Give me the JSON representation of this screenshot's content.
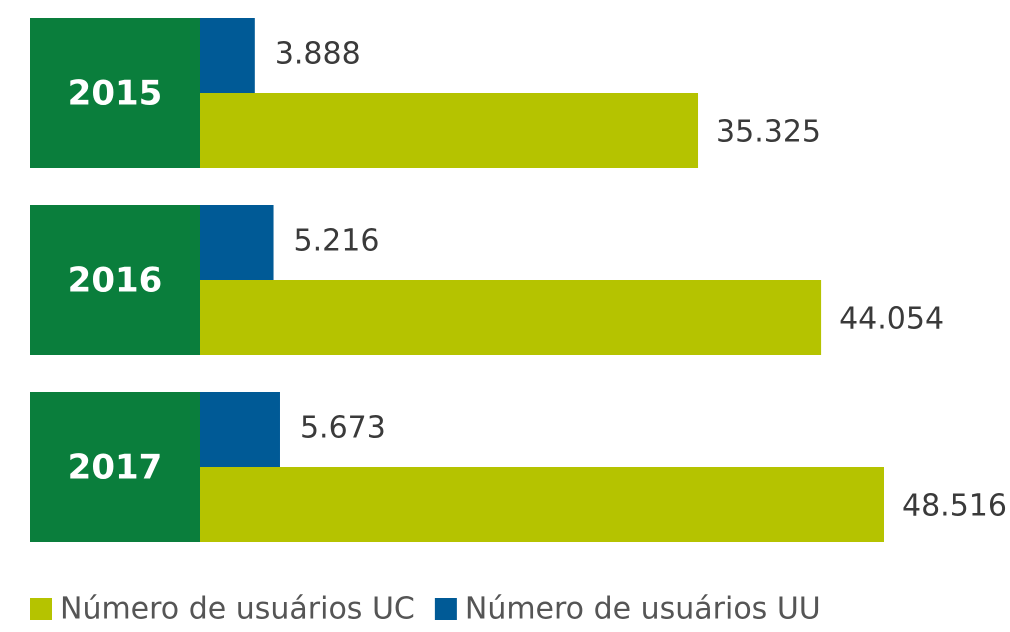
{
  "chart_data": {
    "type": "bar",
    "orientation": "horizontal",
    "categories": [
      "2015",
      "2016",
      "2017"
    ],
    "category_color": "#0a7e3c",
    "series": [
      {
        "name": "Número de usuários UC",
        "color": "#b5c300",
        "values": [
          35325,
          44054,
          48516
        ],
        "value_labels": [
          "35.325",
          "44.054",
          "48.516"
        ]
      },
      {
        "name": "Número de usuários UU",
        "color": "#005a96",
        "values": [
          3888,
          5216,
          5673
        ],
        "value_labels": [
          "3.888",
          "5.216",
          "5.673"
        ]
      }
    ],
    "legend": "bottom-left"
  }
}
